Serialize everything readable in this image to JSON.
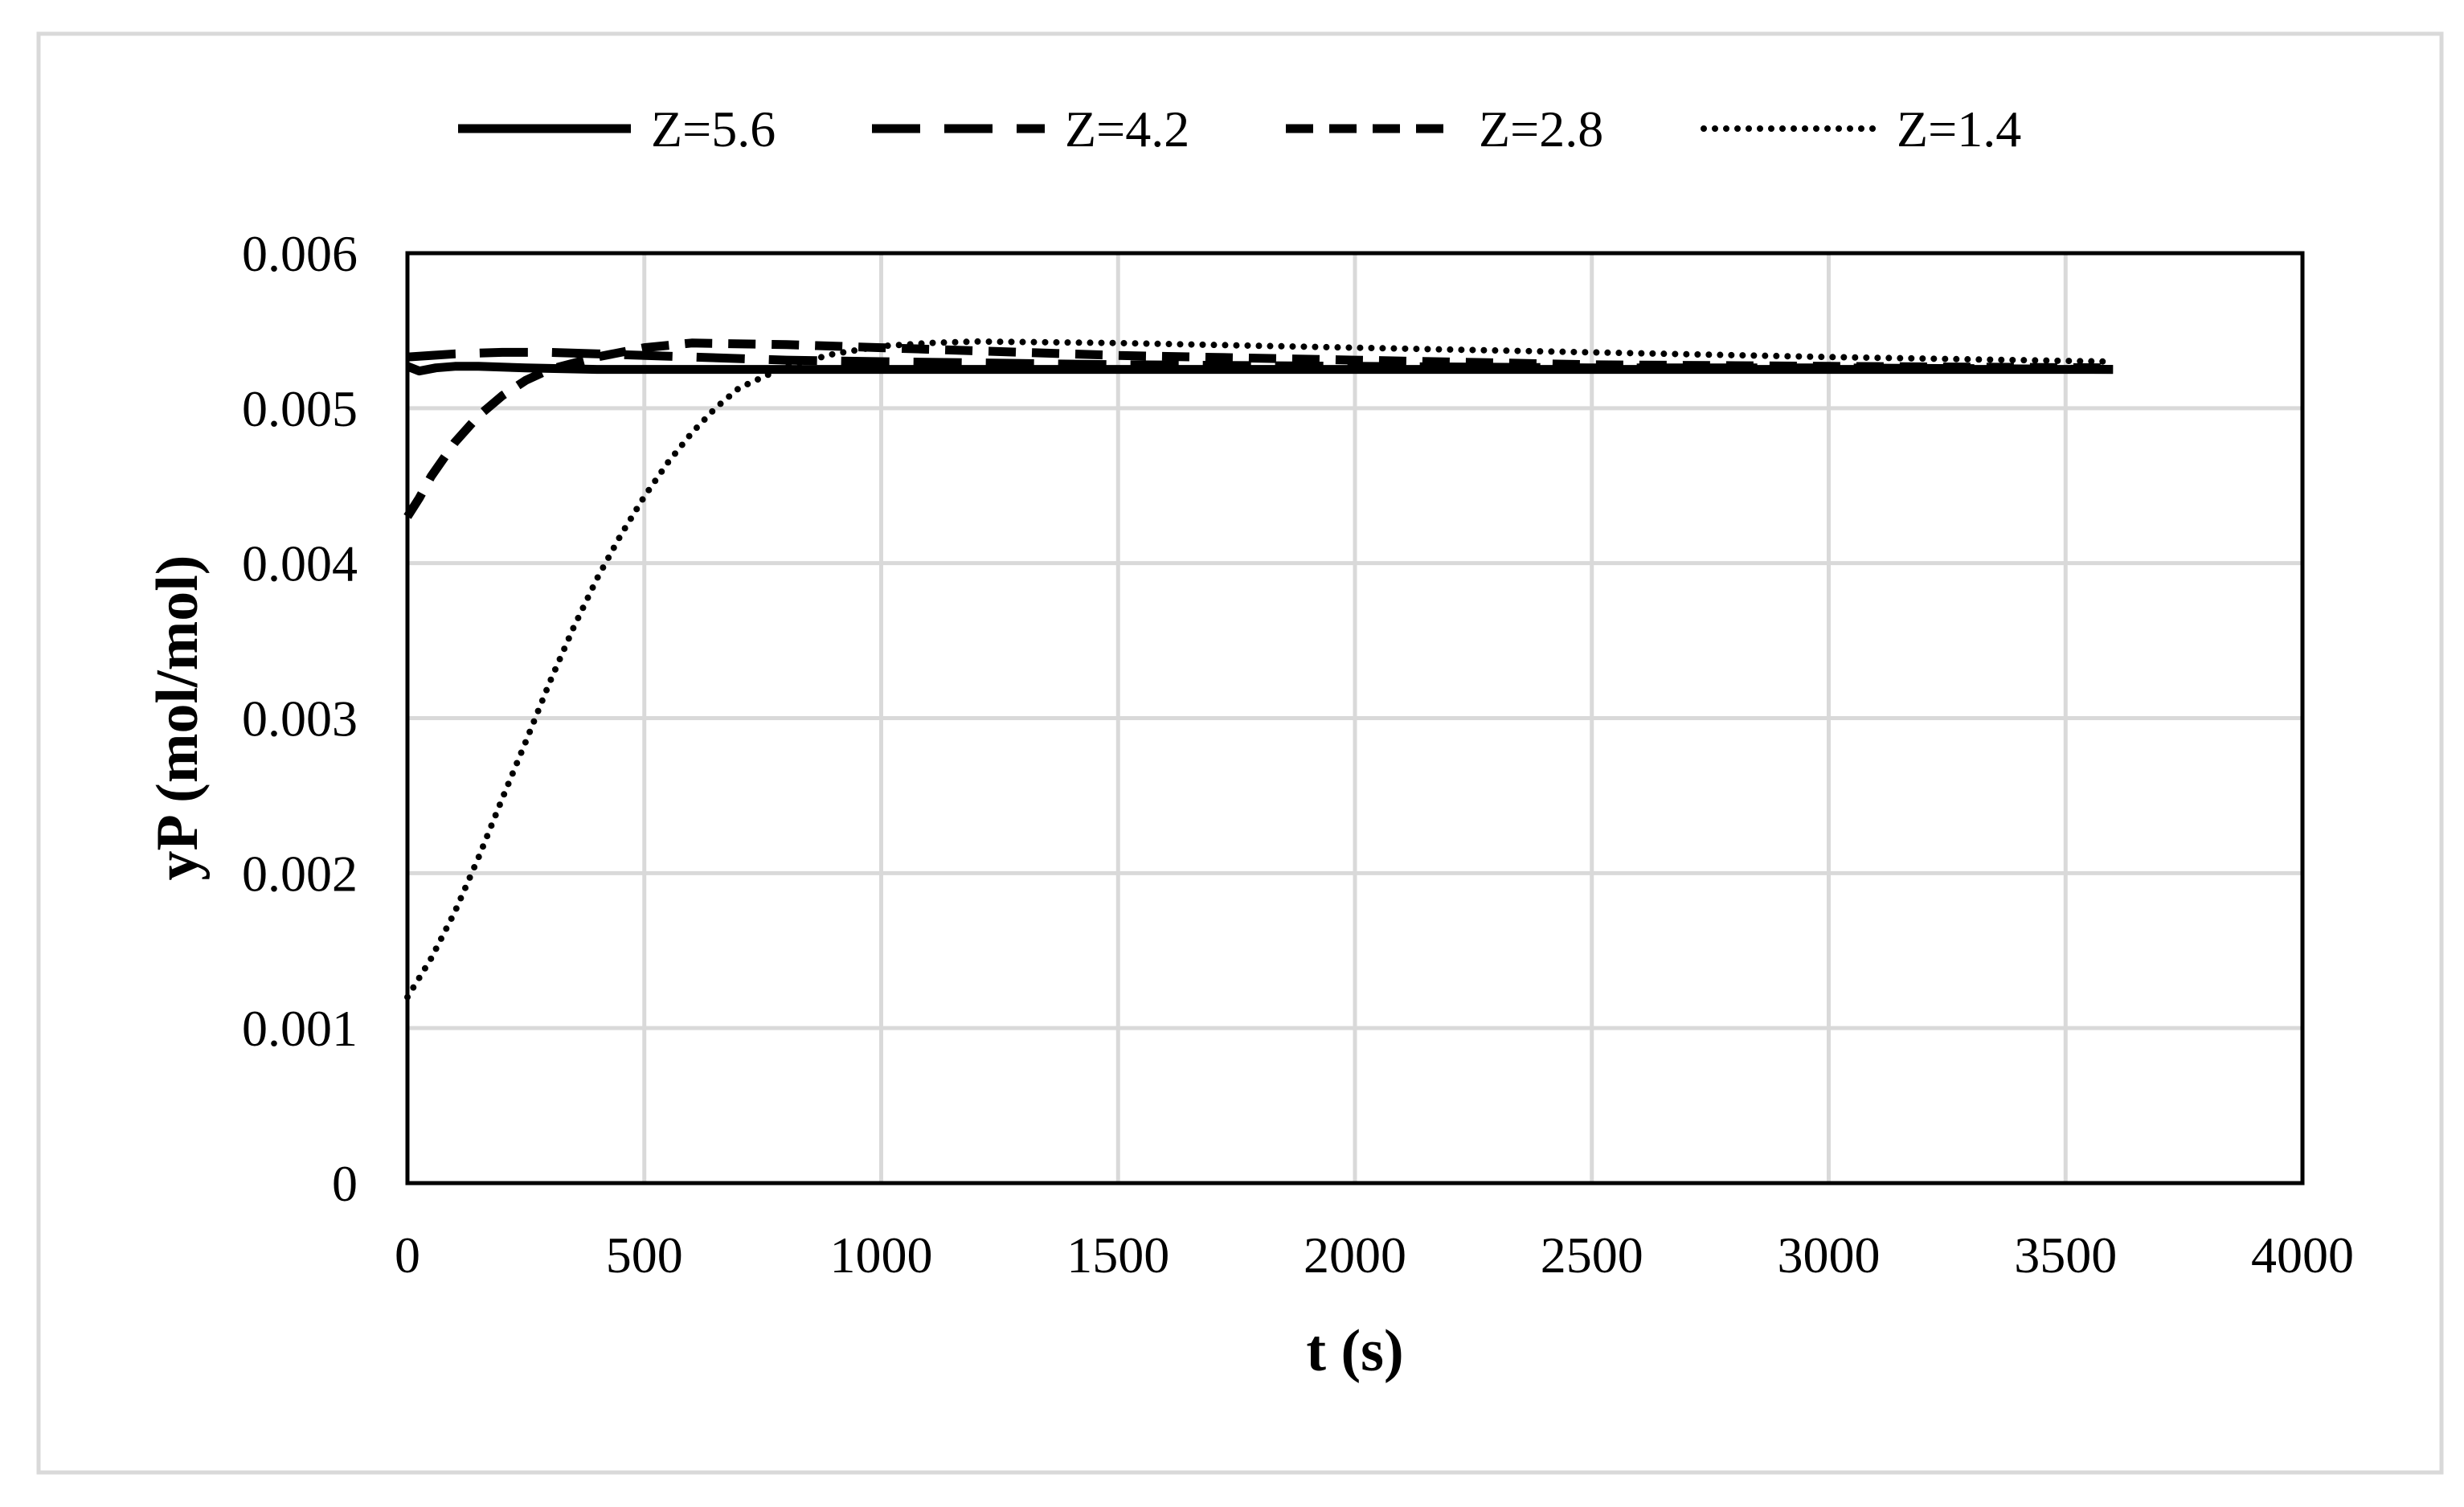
{
  "chart_data": {
    "type": "line",
    "title": "",
    "xlabel": "t (s)",
    "ylabel": "yP (mol/mol)",
    "xlim": [
      0,
      4000
    ],
    "ylim": [
      0,
      0.006
    ],
    "x_ticks": [
      0,
      500,
      1000,
      1500,
      2000,
      2500,
      3000,
      3500,
      4000
    ],
    "x_tick_labels": [
      "0",
      "500",
      "1000",
      "1500",
      "2000",
      "2500",
      "3000",
      "3500",
      "4000"
    ],
    "y_ticks": [
      0,
      0.001,
      0.002,
      0.003,
      0.004,
      0.005,
      0.006
    ],
    "y_tick_labels": [
      "0",
      "0.001",
      "0.002",
      "0.003",
      "0.004",
      "0.005",
      "0.006"
    ],
    "grid": true,
    "legend_position": "top",
    "series": [
      {
        "name": "Z=5.6",
        "line_style": "solid",
        "color": "#000000",
        "x": [
          0,
          25,
          60,
          100,
          150,
          250,
          400,
          600,
          1000,
          2000,
          3000,
          3600
        ],
        "y": [
          0.00527,
          0.00524,
          0.00526,
          0.00527,
          0.00527,
          0.00526,
          0.00525,
          0.00525,
          0.00525,
          0.00525,
          0.00525,
          0.00525
        ]
      },
      {
        "name": "Z=4.2",
        "line_style": "long-dash",
        "color": "#000000",
        "x": [
          0,
          50,
          100,
          200,
          300,
          400,
          600,
          800,
          1000,
          1500,
          2000,
          2500,
          3000,
          3600
        ],
        "y": [
          0.00533,
          0.00534,
          0.00535,
          0.00536,
          0.00536,
          0.00535,
          0.00533,
          0.00531,
          0.0053,
          0.00528,
          0.00527,
          0.00526,
          0.00526,
          0.00525
        ]
      },
      {
        "name": "Z=2.8",
        "line_style": "dash",
        "color": "#000000",
        "x": [
          0,
          25,
          50,
          100,
          150,
          200,
          250,
          300,
          400,
          500,
          600,
          800,
          1000,
          1200,
          1500,
          2000,
          2500,
          3000,
          3600
        ],
        "y": [
          0.0043,
          0.00442,
          0.00456,
          0.00478,
          0.00495,
          0.00508,
          0.00518,
          0.00525,
          0.00533,
          0.00539,
          0.00542,
          0.00541,
          0.00539,
          0.00537,
          0.00534,
          0.00531,
          0.00528,
          0.00527,
          0.00526
        ]
      },
      {
        "name": "Z=1.4",
        "line_style": "dot",
        "color": "#000000",
        "x": [
          0,
          50,
          100,
          150,
          200,
          250,
          300,
          350,
          400,
          450,
          500,
          550,
          600,
          650,
          700,
          800,
          900,
          1000,
          1100,
          1200,
          1500,
          2000,
          2500,
          3000,
          3600
        ],
        "y": [
          0.0012,
          0.00145,
          0.00175,
          0.0021,
          0.00248,
          0.00285,
          0.00323,
          0.00358,
          0.0039,
          0.00418,
          0.00443,
          0.00465,
          0.00484,
          0.005,
          0.00513,
          0.00527,
          0.00535,
          0.0054,
          0.00542,
          0.00543,
          0.00542,
          0.00539,
          0.00536,
          0.00533,
          0.0053
        ]
      }
    ]
  }
}
